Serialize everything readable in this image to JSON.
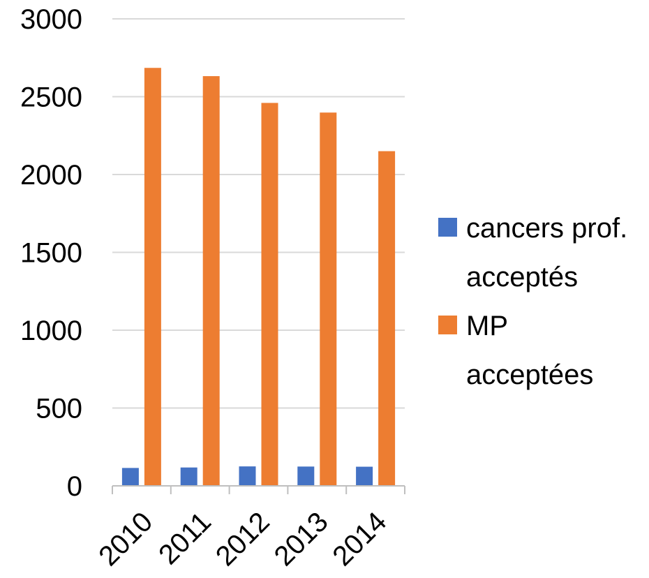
{
  "chart_data": {
    "type": "bar",
    "title": "",
    "xlabel": "",
    "ylabel": "",
    "categories": [
      "2010",
      "2011",
      "2012",
      "2013",
      "2014"
    ],
    "series": [
      {
        "name": "cancers prof. acceptés",
        "legend_lines": [
          "cancers prof.",
          "acceptés"
        ],
        "color": "#4472C4",
        "values": [
          115,
          118,
          125,
          124,
          123
        ]
      },
      {
        "name": "MP acceptées",
        "legend_lines": [
          "MP",
          "acceptées"
        ],
        "color": "#ED7D31",
        "values": [
          2685,
          2632,
          2460,
          2398,
          2150
        ]
      }
    ],
    "ylim": [
      0,
      3000
    ],
    "yticks": [
      "0",
      "500",
      "1000",
      "1500",
      "2000",
      "2500",
      "3000"
    ],
    "grid": true,
    "legend_position": "right"
  }
}
